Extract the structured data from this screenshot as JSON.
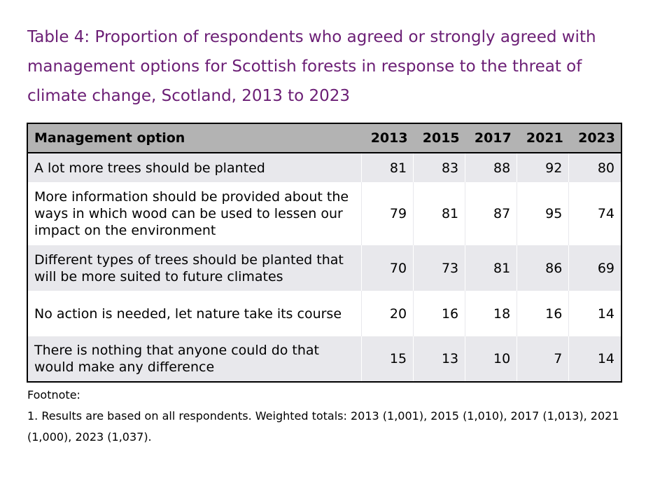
{
  "title": "Table 4: Proportion of respondents who agreed or strongly agreed with management options for Scottish forests in response to the threat of climate change, Scotland, 2013 to 2023",
  "table": {
    "headers": [
      "Management option",
      "2013",
      "2015",
      "2017",
      "2021",
      "2023"
    ],
    "rows": [
      {
        "option": "A lot more trees should be planted",
        "values": [
          "81",
          "83",
          "88",
          "92",
          "80"
        ]
      },
      {
        "option": "More information should be provided about the ways in which wood can be used to lessen our impact on the environment",
        "values": [
          "79",
          "81",
          "87",
          "95",
          "74"
        ]
      },
      {
        "option": "Different types of trees should be planted that will be more suited to future climates",
        "values": [
          "70",
          "73",
          "81",
          "86",
          "69"
        ]
      },
      {
        "option": "No action is needed, let nature take its course",
        "values": [
          "20",
          "16",
          "18",
          "16",
          "14"
        ]
      },
      {
        "option": "There is nothing that anyone could do that would make any difference",
        "values": [
          "15",
          "13",
          "10",
          "7",
          "14"
        ]
      }
    ]
  },
  "footnote": {
    "heading": "Footnote:",
    "text": "1. Results are based on all respondents. Weighted totals: 2013 (1,001), 2015 (1,010), 2017 (1,013), 2021 (1,000), 2023 (1,037)."
  },
  "colors": {
    "title": "#6b1e75",
    "header_bg": "#b3b3b3",
    "row_shade": "#e8e8ec"
  }
}
